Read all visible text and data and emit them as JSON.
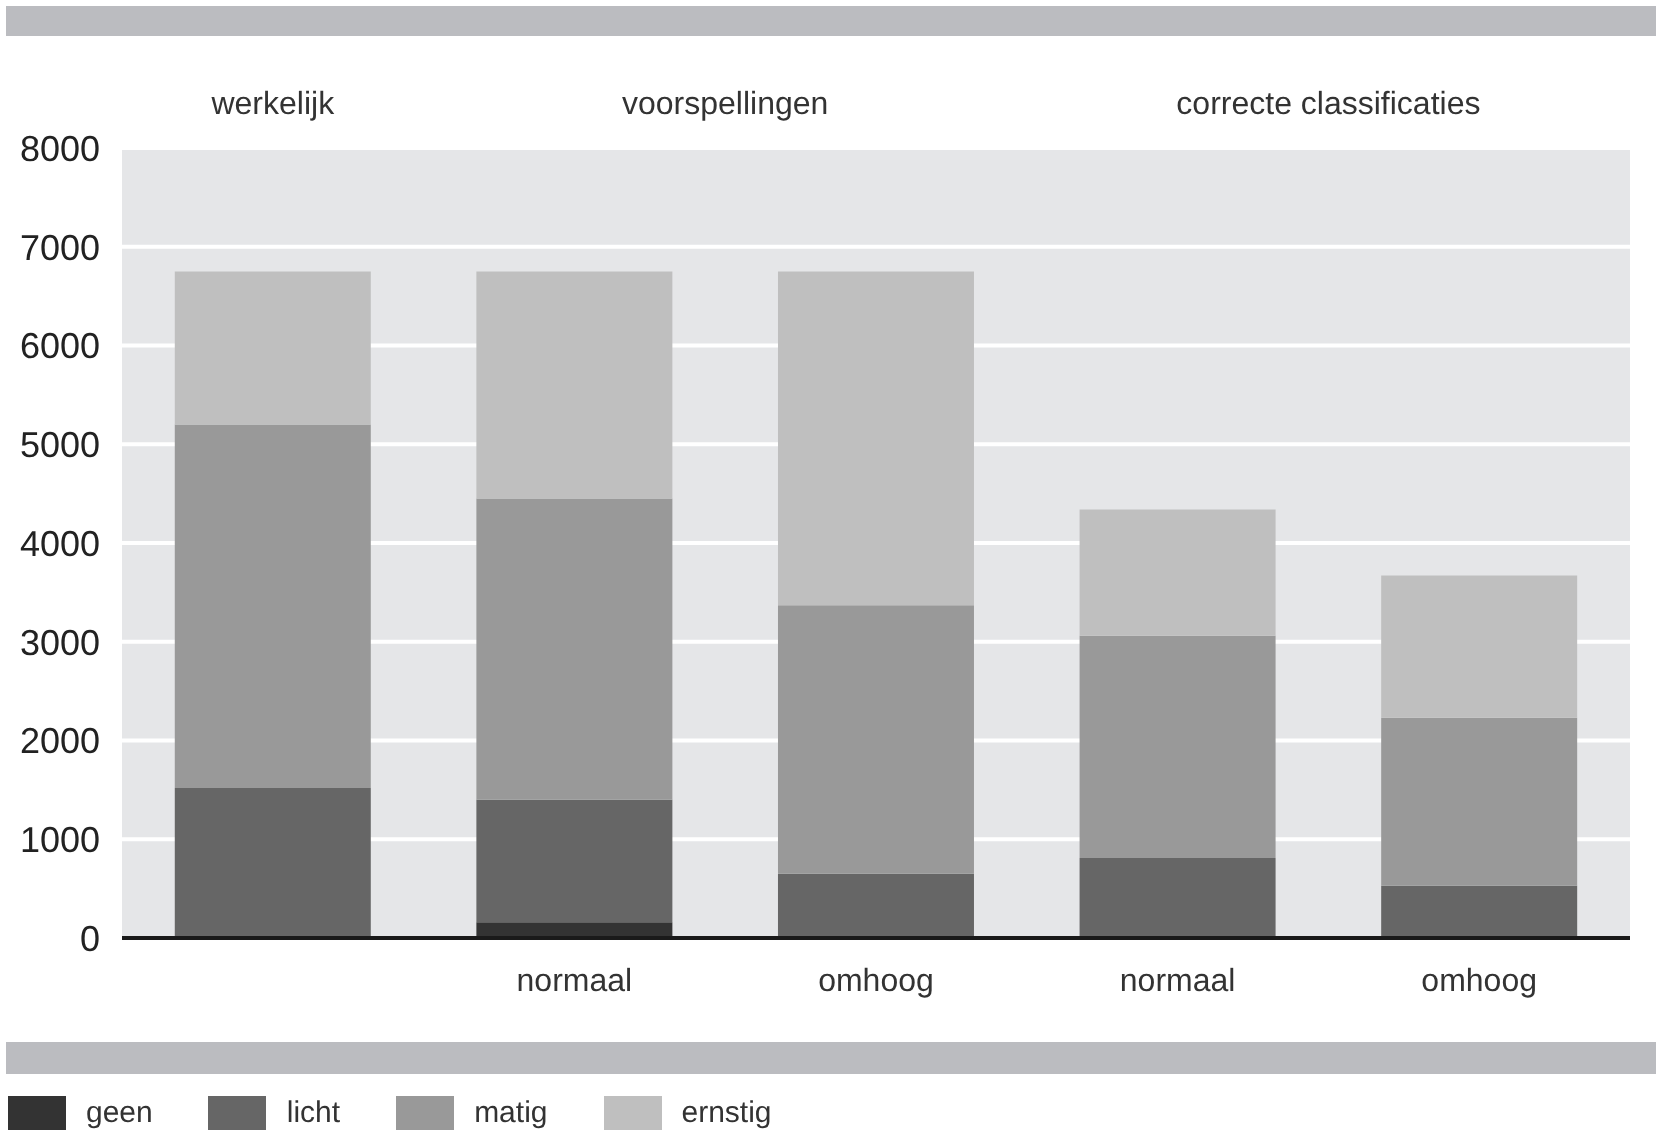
{
  "chart_data": {
    "type": "bar",
    "stacked": true,
    "categories": [
      null,
      "normaal",
      "omhoog",
      "normaal",
      "omhoog"
    ],
    "series": [
      {
        "name": "geen",
        "color": "#333333",
        "values": [
          20,
          160,
          null,
          null,
          null
        ]
      },
      {
        "name": "licht",
        "color": "#666666",
        "values": [
          1500,
          1240,
          650,
          810,
          530
        ]
      },
      {
        "name": "matig",
        "color": "#999999",
        "values": [
          3680,
          3050,
          2720,
          2250,
          1700
        ]
      },
      {
        "name": "ernstig",
        "color": "#bfbfbf",
        "values": [
          1550,
          2300,
          3380,
          1280,
          1440
        ]
      }
    ],
    "ylim": [
      0,
      8000
    ],
    "yticks": [
      0,
      1000,
      2000,
      3000,
      4000,
      5000,
      6000,
      7000,
      8000
    ],
    "grid": "y",
    "legend": "bottom left",
    "annotations": [
      "werkelijk",
      "voorspellingen",
      "correcte classificaties"
    ]
  }
}
